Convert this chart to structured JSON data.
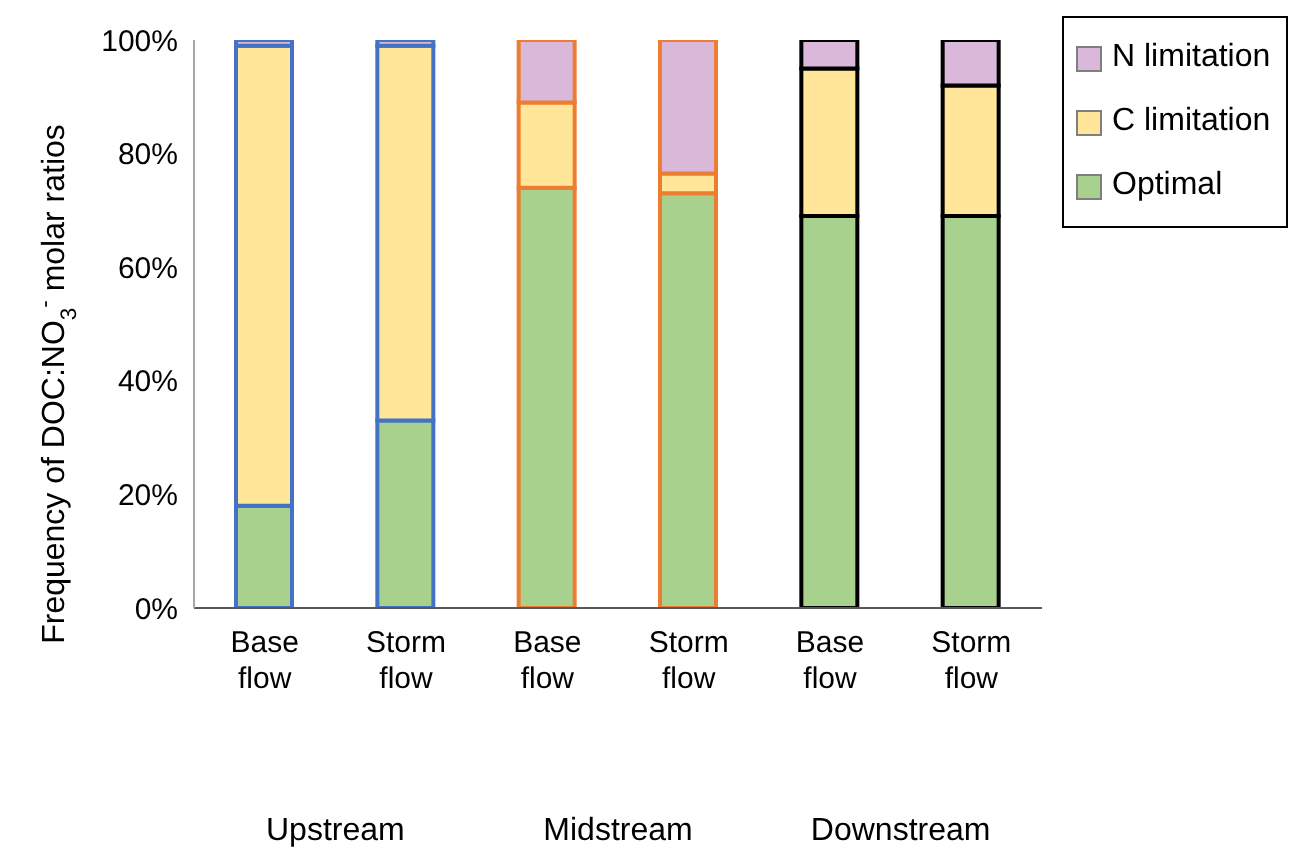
{
  "chart_data": {
    "type": "bar",
    "stacked": true,
    "ylabel": "Frequency of DOC:NO$_{3}$$^{-}$ molar ratios",
    "categories": [
      "Base flow",
      "Storm flow",
      "Base flow",
      "Storm flow",
      "Base flow",
      "Storm flow"
    ],
    "series": [
      {
        "name": "Optimal",
        "color": "#a9d18e",
        "values": [
          18,
          33,
          74,
          73,
          69,
          69
        ]
      },
      {
        "name": "C limitation",
        "color": "#ffe699",
        "values": [
          81,
          66,
          15,
          3.5,
          26,
          23
        ]
      },
      {
        "name": "N limitation",
        "color": "#d9b8d9",
        "values": [
          1,
          1,
          11,
          23.5,
          5,
          8
        ]
      }
    ],
    "ylim": [
      0,
      100
    ],
    "yticks": [
      {
        "value": 0,
        "label": "0%"
      },
      {
        "value": 20,
        "label": "20%"
      },
      {
        "value": 40,
        "label": "40%"
      },
      {
        "value": 60,
        "label": "60%"
      },
      {
        "value": 80,
        "label": "80%"
      },
      {
        "value": 100,
        "label": "100%"
      }
    ],
    "annotations": [
      "Upstream",
      "Midstream",
      "Downstream"
    ],
    "grid": false,
    "legend": "top right"
  }
}
